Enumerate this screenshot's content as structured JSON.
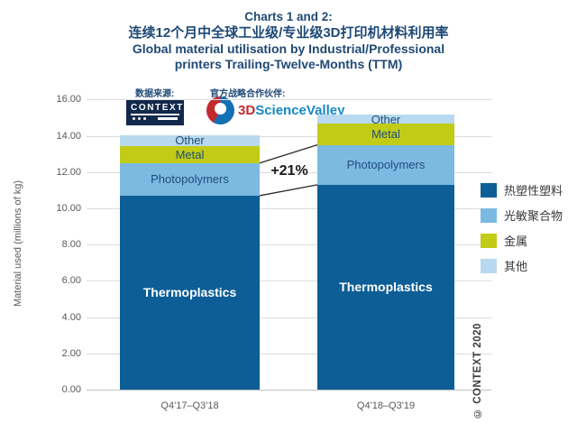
{
  "header": {
    "title_line1": "Charts 1 and 2:",
    "title_line2": "连续12个月中全球工业级/专业级3D打印机材料利用率",
    "title_line3": "Global material utilisation by Industrial/Professional",
    "title_line4": "printers Trailing-Twelve-Months (TTM)"
  },
  "sources": {
    "data_source_label": "数据来源:",
    "partner_label": "官方战略合作伙伴:",
    "context_logo_text": "CONTEXT",
    "partner_logo_prefix": "3D",
    "partner_logo_name": "ScienceValley"
  },
  "chart_data": {
    "type": "bar",
    "stacked": true,
    "grid": true,
    "legend_position": "right",
    "categories": [
      "Q4'17–Q3'18",
      "Q4'18–Q3'19"
    ],
    "series": [
      {
        "name": "Thermoplastics",
        "legend_label": "热塑性塑料",
        "color": "#0d5e96",
        "label_color": "#ffffff",
        "values": [
          10.7,
          11.3
        ]
      },
      {
        "name": "Photopolymers",
        "legend_label": "光敏聚合物",
        "color": "#7cbae2",
        "label_color": "#1f4e79",
        "values": [
          1.8,
          2.2
        ]
      },
      {
        "name": "Metal",
        "legend_label": "金属",
        "color": "#c2cb16",
        "label_color": "#1f4e79",
        "values": [
          0.95,
          1.2
        ]
      },
      {
        "name": "Other",
        "legend_label": "其他",
        "color": "#b8d9ef",
        "label_color": "#1f4e79",
        "values": [
          0.6,
          0.45
        ]
      }
    ],
    "totals": [
      14.05,
      15.15
    ],
    "ylabel": "Material used (millions of kg)",
    "ylim": [
      0,
      16
    ],
    "ytick_step": 2,
    "ytick_format_example": "16.00",
    "annotation": {
      "text": "+21%",
      "refers_to_series": "Photopolymers"
    }
  },
  "footer": {
    "copyright": "© CONTEXT 2020"
  }
}
